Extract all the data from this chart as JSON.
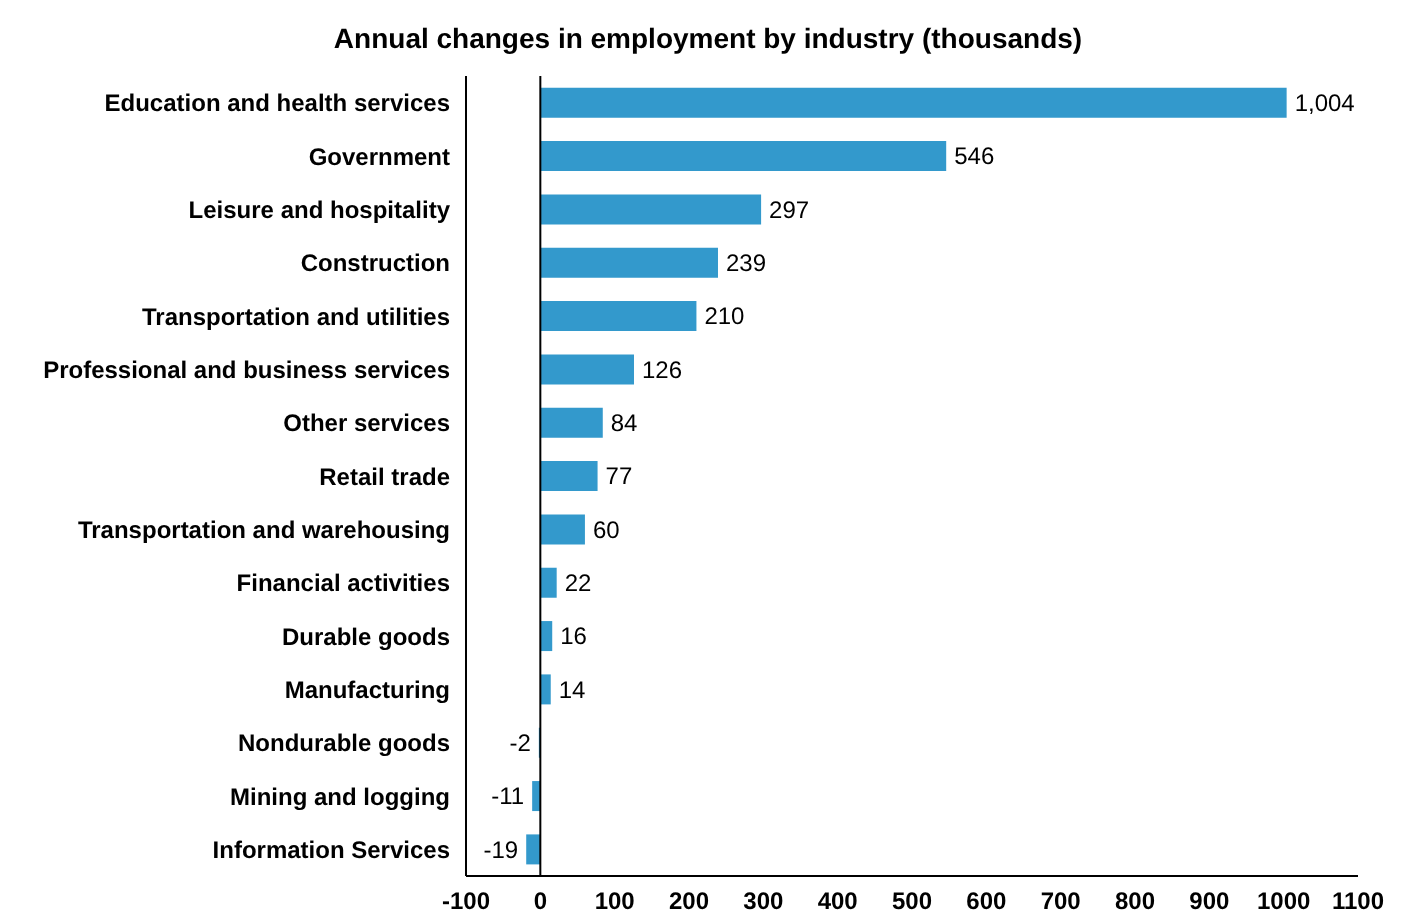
{
  "chart_data": {
    "type": "bar",
    "orientation": "horizontal",
    "title": "Annual changes in employment by industry (thousands)",
    "categories": [
      "Education and health services",
      "Government",
      "Leisure and hospitality",
      "Construction",
      "Transportation and utilities",
      "Professional and business services",
      "Other services",
      "Retail trade",
      "Transportation and warehousing",
      "Financial activities",
      "Durable goods",
      "Manufacturing",
      "Nondurable goods",
      "Mining and logging",
      "Information Services"
    ],
    "values": [
      1004,
      546,
      297,
      239,
      210,
      126,
      84,
      77,
      60,
      22,
      16,
      14,
      -2,
      -11,
      -19
    ],
    "value_labels": [
      "1,004",
      "546",
      "297",
      "239",
      "210",
      "126",
      "84",
      "77",
      "60",
      "22",
      "16",
      "14",
      "-2",
      "-11",
      "-19"
    ],
    "color": "#3399cc",
    "xlim": [
      -100,
      1100
    ],
    "xticks": [
      -100,
      0,
      100,
      200,
      300,
      400,
      500,
      600,
      700,
      800,
      900,
      1000,
      1100
    ],
    "ref_lines": [
      {
        "axis": "x",
        "value": 0,
        "color": "#000000"
      }
    ],
    "grid": false,
    "legend": false
  }
}
